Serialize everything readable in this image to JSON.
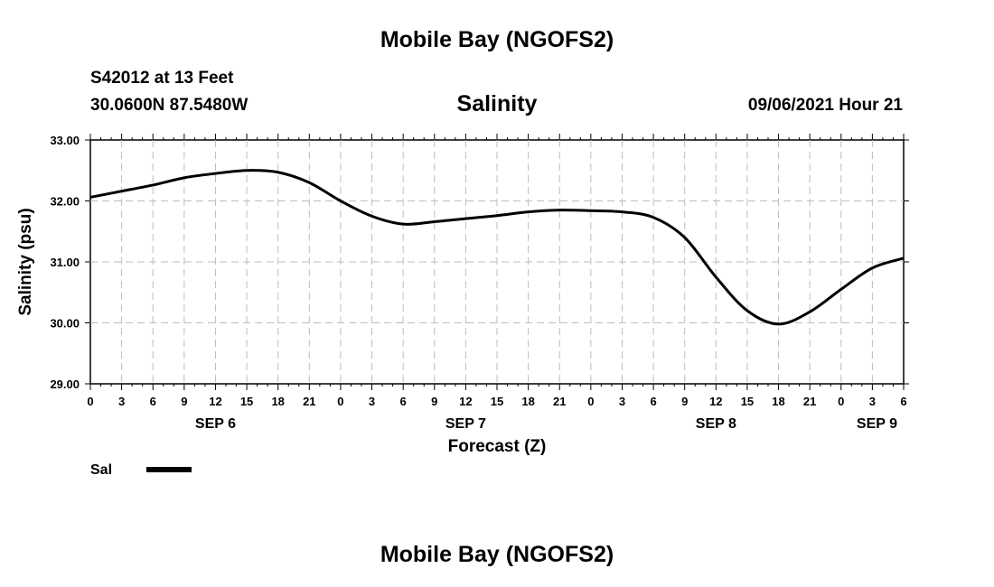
{
  "header": {
    "title": "Mobile Bay (NGOFS2)",
    "station": "S42012 at 13 Feet",
    "coordinates": "30.0600N  87.5480W",
    "datetime": "09/06/2021 Hour 21",
    "footer_title": "Mobile Bay (NGOFS2)"
  },
  "chart_data": {
    "type": "line",
    "title": "Salinity",
    "xlabel": "Forecast (Z)",
    "ylabel": "Salinity (psu)",
    "ylim": [
      29.0,
      33.0
    ],
    "yticks": [
      "29.00",
      "30.00",
      "31.00",
      "32.00",
      "33.00"
    ],
    "xlim": [
      0,
      78
    ],
    "xtick_labels": [
      "0",
      "3",
      "6",
      "9",
      "12",
      "15",
      "18",
      "21",
      "0",
      "3",
      "6",
      "9",
      "12",
      "15",
      "18",
      "21",
      "0",
      "3",
      "6",
      "9",
      "12",
      "15",
      "18",
      "21",
      "0",
      "3",
      "6"
    ],
    "date_labels": [
      {
        "label": "SEP 6",
        "hour": 12
      },
      {
        "label": "SEP 7",
        "hour": 36
      },
      {
        "label": "SEP 8",
        "hour": 60
      },
      {
        "label": "SEP 9",
        "hour": 78
      }
    ],
    "grid": true,
    "legend": "bottom-left",
    "series": [
      {
        "name": "Sal",
        "color": "#000000",
        "x": [
          0,
          3,
          6,
          9,
          12,
          15,
          18,
          21,
          24,
          27,
          30,
          33,
          36,
          39,
          42,
          45,
          48,
          51,
          54,
          57,
          60,
          63,
          66,
          69,
          72,
          75,
          78
        ],
        "values": [
          32.06,
          32.16,
          32.26,
          32.38,
          32.45,
          32.5,
          32.47,
          32.3,
          32.0,
          31.75,
          31.62,
          31.66,
          31.71,
          31.76,
          31.82,
          31.85,
          31.84,
          31.82,
          31.73,
          31.4,
          30.75,
          30.2,
          29.98,
          30.18,
          30.55,
          30.9,
          31.06
        ]
      }
    ]
  }
}
